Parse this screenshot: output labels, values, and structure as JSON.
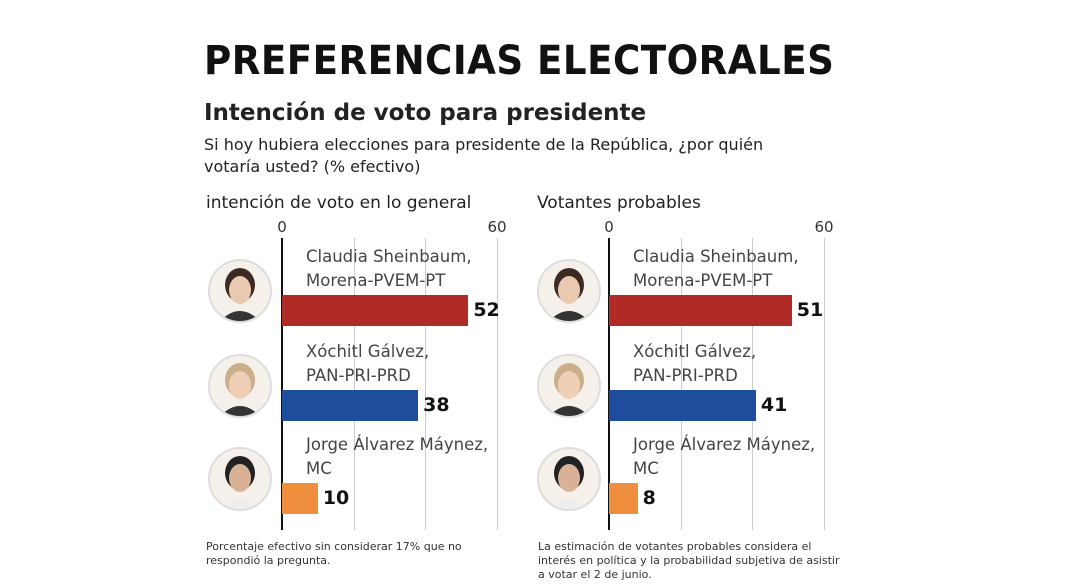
{
  "header": {
    "title": "PREFERENCIAS ELECTORALES",
    "subtitle": "Intención de voto para presidente",
    "question": "Si hoy hubiera elecciones para presidente de la República, ¿por quién votaría usted? (% efectivo)"
  },
  "chart_data": [
    {
      "type": "bar",
      "orientation": "horizontal",
      "title": "intención de voto en lo general",
      "categories": [
        "Claudia Sheinbaum, Morena-PVEM-PT",
        "Xóchitl Gálvez, PAN-PRI-PRD",
        "Jorge Álvarez Máynez, MC"
      ],
      "candidates": [
        {
          "name": "Claudia Sheinbaum,",
          "party": "Morena-PVEM-PT"
        },
        {
          "name": "Xóchitl Gálvez,",
          "party": "PAN-PRI-PRD"
        },
        {
          "name": "Jorge Álvarez Máynez,",
          "party": "MC"
        }
      ],
      "values": [
        52,
        38,
        10
      ],
      "colors": [
        "#b02a26",
        "#1f4d9e",
        "#ef8f3d"
      ],
      "xlim": [
        0,
        60
      ],
      "tick_labels": [
        "0",
        "60"
      ],
      "gridlines": [
        0,
        20,
        40,
        60
      ],
      "note": "Porcentaje efectivo sin considerar 17% que no respondió la pregunta."
    },
    {
      "type": "bar",
      "orientation": "horizontal",
      "title": "Votantes probables",
      "categories": [
        "Claudia Sheinbaum, Morena-PVEM-PT",
        "Xóchitl Gálvez, PAN-PRI-PRD",
        "Jorge Álvarez Máynez, MC"
      ],
      "candidates": [
        {
          "name": "Claudia Sheinbaum,",
          "party": "Morena-PVEM-PT"
        },
        {
          "name": "Xóchitl Gálvez,",
          "party": "PAN-PRI-PRD"
        },
        {
          "name": "Jorge Álvarez Máynez,",
          "party": "MC"
        }
      ],
      "values": [
        51,
        41,
        8
      ],
      "colors": [
        "#b02a26",
        "#1f4d9e",
        "#ef8f3d"
      ],
      "xlim": [
        0,
        60
      ],
      "tick_labels": [
        "0",
        "60"
      ],
      "gridlines": [
        0,
        20,
        40,
        60
      ],
      "note": "La estimación de votantes probables considera el interés en política y la probabilidad subjetiva de asistir a votar el 2 de junio."
    }
  ]
}
